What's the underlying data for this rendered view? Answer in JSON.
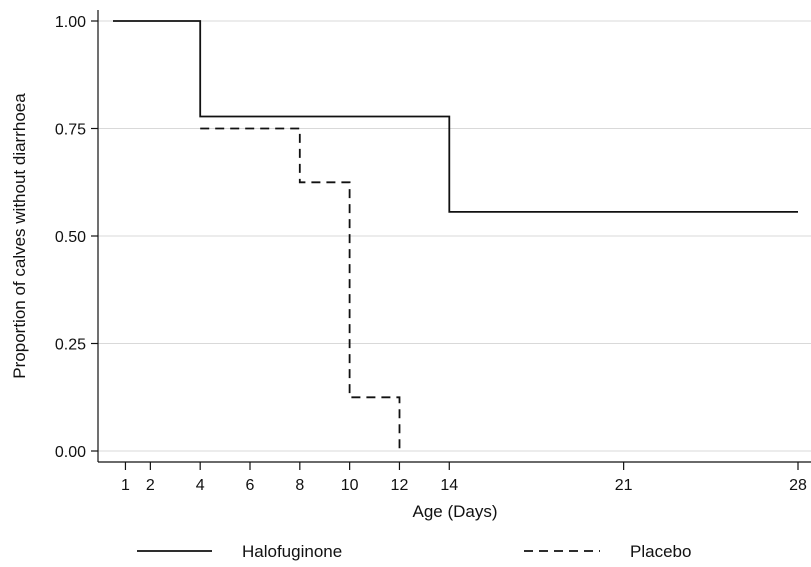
{
  "chart_data": {
    "type": "line",
    "subtype": "kaplan-meier step",
    "title": "",
    "xlabel": "Age (Days)",
    "ylabel": "Proportion of calves without diarrhoea",
    "xlim": [
      -0.5,
      28.5
    ],
    "ylim": [
      0,
      1
    ],
    "x_ticks": [
      1,
      2,
      4,
      6,
      8,
      10,
      12,
      14,
      21,
      28
    ],
    "y_ticks": [
      0.0,
      0.25,
      0.5,
      0.75,
      1.0
    ],
    "y_tick_labels": [
      "0.00",
      "0.25",
      "0.50",
      "0.75",
      "1.00"
    ],
    "grid": "horizontal",
    "legend_position": "bottom",
    "series": [
      {
        "name": "Halofuginone",
        "style": "solid",
        "color": "#111111",
        "points": [
          [
            0.5,
            1.0
          ],
          [
            4,
            1.0
          ],
          [
            4,
            0.778
          ],
          [
            14,
            0.778
          ],
          [
            14,
            0.556
          ],
          [
            28,
            0.556
          ]
        ]
      },
      {
        "name": "Placebo",
        "style": "dashed",
        "color": "#111111",
        "points": [
          [
            4,
            0.75
          ],
          [
            8,
            0.75
          ],
          [
            8,
            0.625
          ],
          [
            10,
            0.625
          ],
          [
            10,
            0.125
          ],
          [
            12,
            0.125
          ],
          [
            12,
            0.0
          ]
        ]
      }
    ]
  }
}
